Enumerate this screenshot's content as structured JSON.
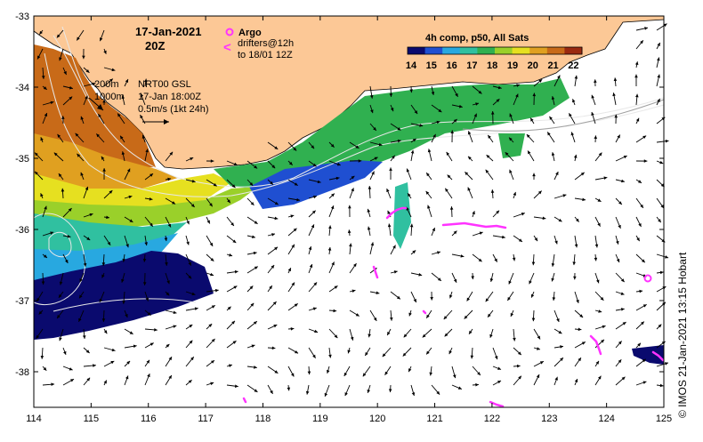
{
  "header": {
    "date": "17-Jan-2021",
    "hour": "20Z"
  },
  "legend": {
    "argo_label": "Argo",
    "drifters_label": "drifters@12h",
    "drifters_sub": "to 18/01 12Z",
    "drifters_symbol": "<",
    "colorbar_title": "4h comp, p50, All Sats",
    "colorbar_ticks": [
      "14",
      "15",
      "16",
      "17",
      "18",
      "19",
      "20",
      "21",
      "22"
    ],
    "argo_color": "#ff33ff",
    "drifter_color": "#ff33ff"
  },
  "annotations": {
    "contour_200": "200m",
    "contour_1000": "1000m",
    "product": "NRT00 GSL",
    "product_time": "17-Jan 18:00Z",
    "speed_scale": "0.5m/s (1kt 24h)"
  },
  "credit": {
    "copyright_symbol": "©",
    "text": "IMOS 21-Jan-2021 13:15 Hobart"
  },
  "axes": {
    "x_ticks": [
      "114",
      "115",
      "116",
      "117",
      "118",
      "119",
      "120",
      "121",
      "122",
      "123",
      "124",
      "125"
    ],
    "y_ticks": [
      "-33",
      "-34",
      "-35",
      "-36",
      "-37",
      "-38"
    ],
    "lon_range": [
      114,
      125
    ],
    "lat_range": [
      -38.5,
      -33
    ]
  },
  "colors": {
    "land": "#fcc896",
    "ocean": "#ffffff",
    "sst_scale": [
      "#0a0a6e",
      "#1f4fd1",
      "#28a8e0",
      "#30c0a0",
      "#30b050",
      "#9ad02a",
      "#e6e020",
      "#e0a020",
      "#c86a18",
      "#9a2a10"
    ]
  }
}
